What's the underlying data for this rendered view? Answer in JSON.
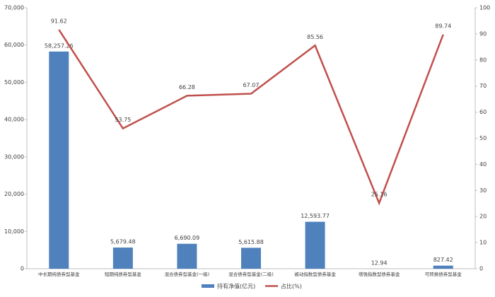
{
  "chart_data": {
    "type": "bar",
    "categories": [
      "中长期纯债券型基金",
      "短期纯债券型基金",
      "混合债券型基金(一级)",
      "混合债券型基金(二级)",
      "被动指数型债券基金",
      "增强指数型债券基金",
      "可转换债券型基金"
    ],
    "series": [
      {
        "name": "持有净值(亿元)",
        "type": "bar",
        "color": "#4f81bd",
        "values": [
          58257.26,
          5679.48,
          6690.09,
          5615.88,
          12593.77,
          12.94,
          827.42
        ],
        "value_labels": [
          "58,257.26",
          "5,679.48",
          "6,690.09",
          "5,615.88",
          "12,593.77",
          "12.94",
          "827.42"
        ]
      },
      {
        "name": "占比(%)",
        "type": "line",
        "axis": "y2",
        "color": "#c0504d",
        "values": [
          91.62,
          53.75,
          66.28,
          67.07,
          85.56,
          25.16,
          89.74
        ]
      }
    ],
    "ylim": [
      0,
      70000
    ],
    "yticks": [
      0,
      {
        "value": 10000,
        "label": "10,000"
      },
      {
        "value": 20000,
        "label": "20,000"
      },
      {
        "value": 30000,
        "label": "30,000"
      },
      {
        "value": 40000,
        "label": "40,000"
      },
      {
        "value": 50000,
        "label": "50,000"
      },
      {
        "value": 60000,
        "label": "60,000"
      },
      {
        "value": 70000,
        "label": "70,000"
      }
    ],
    "y2lim": [
      0,
      100
    ],
    "y2ticks": [
      0,
      10,
      20,
      30,
      40,
      50,
      60,
      70,
      80,
      90,
      100
    ],
    "legend": "bottom"
  }
}
